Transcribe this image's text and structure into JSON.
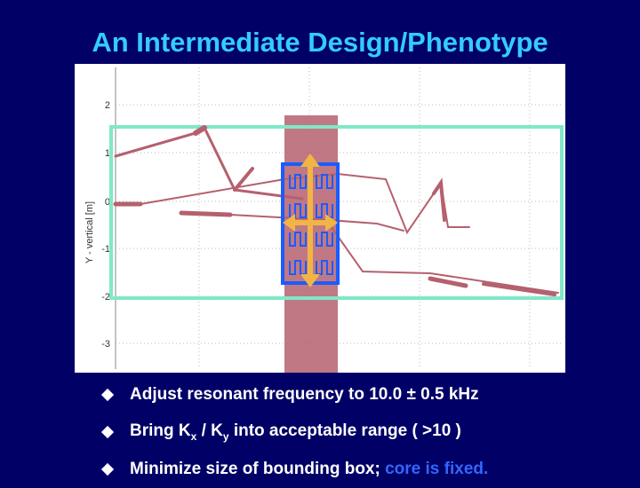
{
  "slide": {
    "title": "An Intermediate Design/Phenotype"
  },
  "plot": {
    "ylabel": "Y - vertical [m]",
    "yticks": [
      "2",
      "1",
      "0",
      "-1",
      "-2",
      "-3"
    ]
  },
  "bullets": [
    {
      "text": "Adjust resonant frequency to 10.0 ± 0.5 kHz"
    },
    {
      "pre": "Bring K",
      "sub1": "x",
      "mid": " / K",
      "sub2": "y",
      "post": " into acceptable range ( >10 )"
    },
    {
      "pre": "Minimize size of bounding box; ",
      "highlight": "core is fixed."
    }
  ],
  "colors": {
    "background": "#000066",
    "title": "#33ccff",
    "highlight": "#3366ff",
    "bounding_box": "#7fe8c8",
    "core": "#b5606e",
    "blue_box": "#1a5cff",
    "arrows": "#f2b545"
  }
}
